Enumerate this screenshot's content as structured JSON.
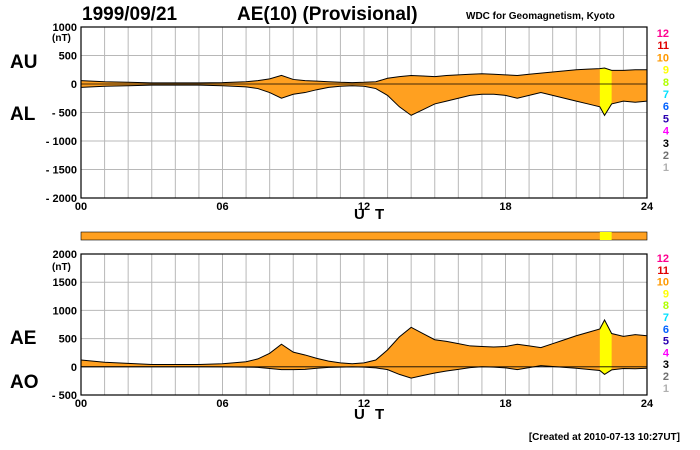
{
  "header": {
    "date": "1999/09/21",
    "title": "AE(10) (Provisional)",
    "source": "WDC for Geomagnetism, Kyoto"
  },
  "footer": {
    "created": "[Created at 2010-07-13 10:27UT]"
  },
  "colors": {
    "fill": "#ffa020",
    "highlight": "#ffff00",
    "grid": "#b8b8b8",
    "legend": [
      "#ff0090",
      "#e00000",
      "#ff9900",
      "#ffff00",
      "#b0ff00",
      "#00e0ff",
      "#0060ff",
      "#2a00b0",
      "#ff00ff",
      "#000000",
      "#707070",
      "#b0b0b0"
    ]
  },
  "legend_labels": [
    "12",
    "11",
    "10",
    "9",
    "8",
    "7",
    "6",
    "5",
    "4",
    "3",
    "2",
    "1"
  ],
  "chart_data": [
    {
      "type": "area",
      "panel": "AU/AL",
      "series_labels": {
        "upper": "AU",
        "lower": "AL"
      },
      "unit": "(nT)",
      "xlabel": "U T",
      "xlim": [
        0,
        24
      ],
      "ylim": [
        -2000,
        1000
      ],
      "xticks": [
        "00",
        "06",
        "12",
        "18",
        "24"
      ],
      "yticks": [
        "1000",
        "500",
        "0",
        "- 500",
        "- 1000",
        "- 1500",
        "- 2000"
      ],
      "highlight_ut": [
        22.0,
        22.5
      ],
      "x": [
        0,
        1,
        2,
        3,
        4,
        5,
        6,
        7,
        7.5,
        8,
        8.5,
        9,
        9.5,
        10,
        10.5,
        11,
        11.5,
        12,
        12.5,
        13,
        13.5,
        14,
        14.5,
        15,
        15.5,
        16,
        16.5,
        17,
        17.5,
        18,
        18.5,
        19,
        19.5,
        20,
        20.5,
        21,
        21.5,
        22,
        22.2,
        22.5,
        23,
        23.5,
        24
      ],
      "au": [
        60,
        40,
        30,
        20,
        20,
        20,
        25,
        40,
        60,
        90,
        150,
        80,
        60,
        50,
        40,
        30,
        25,
        30,
        40,
        100,
        130,
        150,
        140,
        130,
        150,
        160,
        170,
        180,
        170,
        160,
        150,
        170,
        190,
        210,
        230,
        250,
        260,
        270,
        280,
        240,
        240,
        250,
        250
      ],
      "al": [
        -60,
        -40,
        -30,
        -20,
        -20,
        -20,
        -30,
        -50,
        -80,
        -150,
        -250,
        -180,
        -150,
        -100,
        -60,
        -40,
        -30,
        -40,
        -80,
        -200,
        -400,
        -550,
        -450,
        -350,
        -300,
        -250,
        -200,
        -180,
        -180,
        -200,
        -250,
        -200,
        -150,
        -200,
        -250,
        -300,
        -350,
        -400,
        -550,
        -350,
        -300,
        -320,
        -300
      ]
    },
    {
      "type": "area",
      "panel": "AE/AO",
      "series_labels": {
        "upper": "AE",
        "lower": "AO"
      },
      "unit": "(nT)",
      "xlabel": "U T",
      "xlim": [
        0,
        24
      ],
      "ylim": [
        -500,
        2000
      ],
      "xticks": [
        "00",
        "06",
        "12",
        "18",
        "24"
      ],
      "yticks": [
        "2000",
        "1500",
        "1000",
        "500",
        "0",
        "- 500"
      ],
      "highlight_ut": [
        22.0,
        22.5
      ],
      "x": [
        0,
        1,
        2,
        3,
        4,
        5,
        6,
        7,
        7.5,
        8,
        8.5,
        9,
        9.5,
        10,
        10.5,
        11,
        11.5,
        12,
        12.5,
        13,
        13.5,
        14,
        14.5,
        15,
        15.5,
        16,
        16.5,
        17,
        17.5,
        18,
        18.5,
        19,
        19.5,
        20,
        20.5,
        21,
        21.5,
        22,
        22.2,
        22.5,
        23,
        23.5,
        24
      ],
      "ae": [
        120,
        80,
        60,
        40,
        40,
        40,
        55,
        90,
        140,
        240,
        400,
        260,
        210,
        150,
        100,
        70,
        55,
        70,
        120,
        300,
        530,
        700,
        590,
        480,
        450,
        410,
        370,
        360,
        350,
        360,
        400,
        370,
        340,
        410,
        480,
        550,
        610,
        670,
        830,
        590,
        540,
        570,
        550
      ],
      "ao": [
        0,
        0,
        0,
        0,
        0,
        0,
        -2,
        -5,
        -10,
        -30,
        -50,
        -50,
        -45,
        -25,
        -10,
        -5,
        -2,
        -5,
        -20,
        -50,
        -135,
        -200,
        -155,
        -110,
        -75,
        -45,
        -15,
        0,
        -5,
        -20,
        -50,
        -15,
        20,
        5,
        -10,
        -25,
        -45,
        -65,
        -135,
        -55,
        -30,
        -35,
        -25
      ]
    }
  ]
}
